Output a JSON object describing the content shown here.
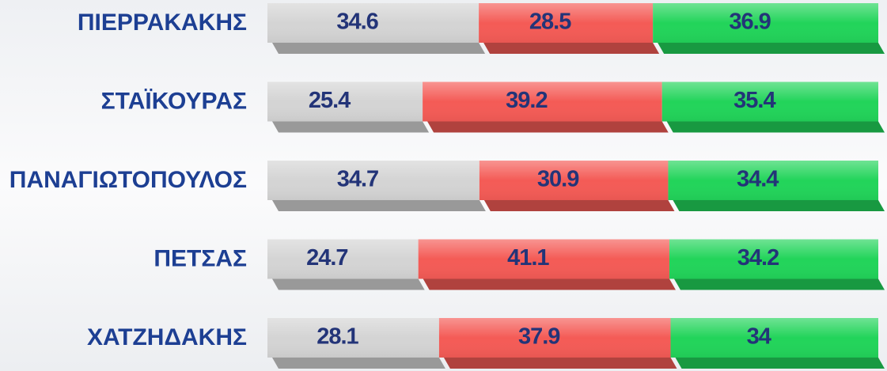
{
  "chart_data": {
    "type": "stacked-bar-horizontal",
    "categories": [
      "ΠΙΕΡΡΑΚΑΚΗΣ",
      "ΣΤΑΪΚΟΥΡΑΣ",
      "ΠΑΝΑΓΙΩΤΟΠΟΥΛΟΣ",
      "ΠΕΤΣΑΣ",
      "ΧΑΤΖΗΔΑΚΗΣ"
    ],
    "series": [
      {
        "color": "#d4d4d4",
        "values": [
          34.6,
          25.4,
          34.7,
          24.7,
          28.1
        ]
      },
      {
        "color": "#f45b56",
        "values": [
          28.5,
          39.2,
          30.9,
          41.1,
          37.9
        ]
      },
      {
        "color": "#22d45a",
        "values": [
          36.9,
          35.4,
          34.4,
          34.2,
          34
        ]
      }
    ],
    "xlim": [
      0,
      100
    ]
  }
}
